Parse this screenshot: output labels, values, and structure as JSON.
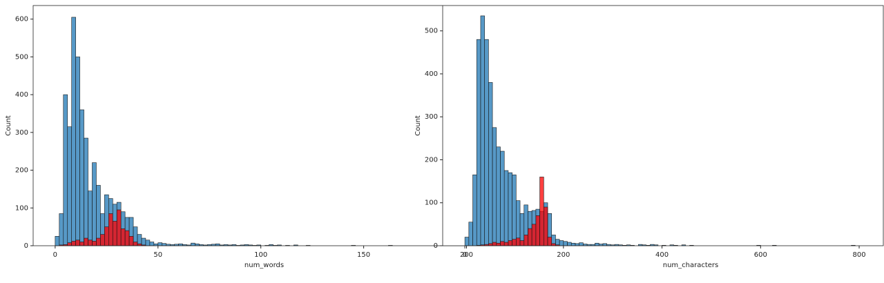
{
  "chart_data": [
    {
      "type": "histogram",
      "xlabel": "num_words",
      "ylabel": "Count",
      "bins": [
        0,
        2,
        4,
        6,
        8,
        10,
        12,
        14,
        16,
        18,
        20,
        22,
        24,
        26,
        28,
        30,
        32,
        34,
        36,
        38,
        40,
        42,
        44,
        46,
        48,
        50,
        52,
        54,
        56,
        58,
        60,
        62,
        64,
        66,
        68,
        70,
        72,
        74,
        76,
        78,
        80,
        82,
        84,
        86,
        88,
        90,
        92,
        94,
        96,
        98,
        100,
        102,
        104,
        106,
        108,
        110,
        112,
        114,
        116,
        118,
        120,
        122,
        124,
        126,
        128,
        130,
        132,
        134,
        136,
        138,
        140,
        142,
        144,
        146,
        148,
        150,
        152,
        154,
        156,
        158,
        160,
        162,
        164,
        166,
        168,
        170,
        172,
        174,
        176
      ],
      "series": [
        {
          "color": "#1f77b4",
          "values": [
            25,
            85,
            400,
            315,
            605,
            500,
            360,
            285,
            145,
            220,
            160,
            85,
            135,
            125,
            110,
            115,
            90,
            75,
            75,
            50,
            30,
            20,
            15,
            10,
            5,
            8,
            6,
            4,
            3,
            4,
            5,
            3,
            2,
            7,
            5,
            3,
            2,
            3,
            4,
            5,
            2,
            3,
            2,
            3,
            1,
            2,
            3,
            2,
            1,
            2,
            0,
            1,
            3,
            1,
            2,
            0,
            1,
            0,
            2,
            0,
            0,
            1,
            0,
            0,
            0,
            0,
            0,
            0,
            0,
            0,
            0,
            0,
            1,
            0,
            0,
            0,
            0,
            0,
            0,
            0,
            0,
            1,
            0,
            0,
            0,
            0,
            0,
            0
          ]
        },
        {
          "color": "#ff0000",
          "values": [
            0,
            2,
            3,
            8,
            12,
            15,
            10,
            20,
            15,
            12,
            20,
            30,
            50,
            85,
            65,
            95,
            45,
            40,
            25,
            10,
            5,
            2,
            0,
            0,
            0,
            0,
            0,
            0,
            0,
            0,
            0,
            0,
            0,
            0,
            0,
            0,
            0,
            0,
            0,
            0,
            0,
            0,
            0,
            0,
            0,
            0,
            0,
            0,
            0,
            0,
            0,
            0,
            0,
            0,
            0,
            0,
            0,
            0,
            0,
            0,
            0,
            0,
            0,
            0,
            0,
            0,
            0,
            0,
            0,
            0,
            0,
            0,
            0,
            0,
            0,
            0,
            0,
            0,
            0,
            0,
            0,
            0,
            0,
            0,
            0,
            0,
            0,
            0
          ]
        }
      ],
      "xlim": [
        -10.7,
        200.5
      ],
      "xticks": [
        0,
        50,
        100,
        150,
        200
      ],
      "ylim": [
        0,
        636
      ],
      "yticks": [
        0,
        100,
        200,
        300,
        400,
        500,
        600
      ]
    },
    {
      "type": "histogram",
      "xlabel": "num_characters",
      "ylabel": "Count",
      "bins": [
        0,
        8,
        16,
        24,
        32,
        40,
        48,
        56,
        64,
        72,
        80,
        88,
        96,
        104,
        112,
        120,
        128,
        136,
        144,
        152,
        160,
        168,
        176,
        184,
        192,
        200,
        208,
        216,
        224,
        232,
        240,
        248,
        256,
        264,
        272,
        280,
        288,
        296,
        304,
        312,
        320,
        328,
        336,
        344,
        352,
        360,
        368,
        376,
        384,
        392,
        400,
        408,
        416,
        424,
        432,
        440,
        448,
        456,
        464,
        472,
        480,
        488,
        496,
        504,
        512,
        520,
        528,
        536,
        544,
        552,
        560,
        568,
        576,
        584,
        592,
        600,
        608,
        616,
        624,
        632,
        640,
        648,
        656,
        664,
        672,
        680,
        688,
        696,
        704,
        712,
        720,
        728,
        736,
        744,
        752,
        760,
        768,
        776,
        784,
        792,
        800
      ],
      "series": [
        {
          "color": "#1f77b4",
          "values": [
            20,
            55,
            165,
            480,
            535,
            480,
            380,
            275,
            230,
            220,
            175,
            170,
            165,
            105,
            75,
            95,
            80,
            82,
            85,
            80,
            100,
            75,
            25,
            15,
            12,
            10,
            8,
            6,
            5,
            7,
            4,
            3,
            3,
            6,
            4,
            5,
            3,
            2,
            3,
            2,
            1,
            2,
            1,
            0,
            3,
            2,
            1,
            3,
            2,
            0,
            1,
            0,
            2,
            1,
            0,
            2,
            0,
            1,
            0,
            0,
            0,
            0,
            0,
            0,
            0,
            0,
            0,
            0,
            0,
            0,
            0,
            0,
            0,
            0,
            1,
            0,
            0,
            0,
            1,
            0,
            0,
            0,
            0,
            0,
            0,
            0,
            0,
            0,
            0,
            0,
            0,
            0,
            0,
            0,
            0,
            0,
            0,
            0,
            1,
            0
          ]
        },
        {
          "color": "#ff0000",
          "values": [
            0,
            0,
            0,
            1,
            2,
            3,
            5,
            8,
            6,
            10,
            8,
            12,
            15,
            18,
            12,
            25,
            40,
            50,
            70,
            160,
            90,
            20,
            5,
            2,
            0,
            0,
            0,
            0,
            0,
            0,
            0,
            0,
            0,
            0,
            0,
            0,
            0,
            0,
            0,
            0,
            0,
            0,
            0,
            0,
            0,
            0,
            0,
            0,
            0,
            0,
            0,
            0,
            0,
            0,
            0,
            0,
            0,
            0,
            0,
            0,
            0,
            0,
            0,
            0,
            0,
            0,
            0,
            0,
            0,
            0,
            0,
            0,
            0,
            0,
            0,
            0,
            0,
            0,
            0,
            0,
            0,
            0,
            0,
            0,
            0,
            0,
            0,
            0,
            0,
            0,
            0,
            0,
            0,
            0,
            0,
            0,
            0,
            0,
            0,
            0
          ]
        }
      ],
      "xlim": [
        -45,
        849
      ],
      "xticks": [
        0,
        200,
        400,
        600,
        800
      ],
      "ylim": [
        0,
        559
      ],
      "yticks": [
        0,
        100,
        200,
        300,
        400,
        500
      ]
    }
  ]
}
